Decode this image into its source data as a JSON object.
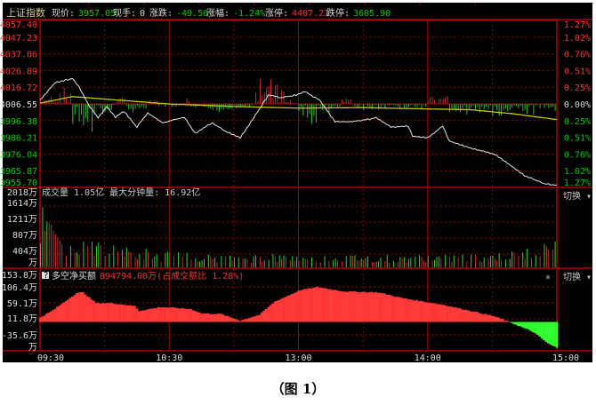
{
  "header": {
    "index_name": "上证指数",
    "price_label": "现价:",
    "price": "3957.05",
    "hand_label": "现手:",
    "hand": "0",
    "change_label": "涨跌:",
    "change": "-49.50",
    "pct_label": "涨幅:",
    "pct": "-1.24%",
    "limit_up_label": "涨停:",
    "limit_up": "4407.21",
    "limit_down_label": "跌停:",
    "limit_down": "3605.90"
  },
  "price_axis": {
    "left": [
      "4057.40",
      "4047.23",
      "4037.06",
      "4026.89",
      "4016.72",
      "4006.55",
      "3996.38",
      "3986.21",
      "3976.04",
      "3965.87",
      "3955.70"
    ],
    "right": [
      "1.27%",
      "1.02%",
      "0.76%",
      "0.51%",
      "0.25%",
      "0.00%",
      "0.25%",
      "0.51%",
      "0.76%",
      "1.02%",
      "1.27%"
    ]
  },
  "volume_panel": {
    "title": "成交量 1.05亿 最大分钟量: 16.92亿",
    "axis": [
      "2018万",
      "1614万",
      "1211万",
      "807万",
      "404万",
      "万"
    ],
    "switch_label": "切换 ▾"
  },
  "net_panel": {
    "help": "?",
    "title": "多空净买额",
    "value": "894794.00万(占成交额比 1.28%)",
    "axis": [
      "153.8万",
      "106.4万",
      "59.1万",
      "11.8万",
      "-35.6万",
      "万"
    ],
    "close": "×",
    "switch_label": "切换 ▾"
  },
  "time_axis": [
    "09:30",
    "10:30",
    "13:00",
    "14:00",
    "15:00"
  ],
  "caption": "（图 1）",
  "colors": {
    "up": "#ff3232",
    "down": "#00d000",
    "price_line": "#e6e6e6",
    "avg_line": "#c8c800",
    "grid": "#a00000",
    "bg": "#000000"
  },
  "chart_data": [
    {
      "type": "line",
      "title": "上证指数",
      "x_unit": "minutes since 09:30 (trading time)",
      "ylim": [
        3955.7,
        4057.4
      ],
      "prev_close": 4006.55,
      "series": [
        {
          "key": "price",
          "points": [
            [
              0,
              4008.7
            ],
            [
              7,
              4019.5
            ],
            [
              15,
              4022
            ],
            [
              18,
              4017
            ],
            [
              23,
              4005
            ],
            [
              27,
              3998
            ],
            [
              31,
              4005
            ],
            [
              35,
              3998.5
            ],
            [
              39,
              4002
            ],
            [
              45,
              3992.5
            ],
            [
              50,
              4001
            ],
            [
              57,
              3995
            ],
            [
              67,
              3998.5
            ],
            [
              72,
              3988.7
            ],
            [
              80,
              3995
            ],
            [
              86,
              3990
            ],
            [
              93,
              3986
            ],
            [
              100,
              3999.5
            ],
            [
              106,
              4012
            ],
            [
              112,
              4010.3
            ],
            [
              119,
              4012
            ],
            [
              123,
              4014
            ],
            [
              130,
              4008.7
            ],
            [
              137,
              3995.7
            ],
            [
              145,
              3995.7
            ],
            [
              156,
              3998
            ],
            [
              163,
              3992.5
            ],
            [
              171,
              3993
            ],
            [
              173,
              3987
            ],
            [
              180,
              3986
            ],
            [
              187,
              3993
            ],
            [
              190,
              3984
            ],
            [
              200,
              3979.5
            ],
            [
              211,
              3976
            ],
            [
              225,
              3963
            ],
            [
              234,
              3957.9
            ],
            [
              240,
              3957.05
            ]
          ]
        },
        {
          "key": "average",
          "points": [
            [
              0,
              4007
            ],
            [
              15,
              4011
            ],
            [
              30,
              4009.5
            ],
            [
              60,
              4006.5
            ],
            [
              90,
              4005
            ],
            [
              120,
              4004
            ],
            [
              150,
              4004.3
            ],
            [
              180,
              4003.5
            ],
            [
              200,
              4003
            ],
            [
              220,
              4000.5
            ],
            [
              240,
              3997
            ]
          ]
        }
      ],
      "strength_5min": [
        3,
        7,
        8,
        -12,
        -18,
        -6,
        -4,
        3,
        -5,
        -3,
        2,
        -2,
        -3,
        4,
        -2,
        -3,
        -4,
        -3,
        -2,
        -2,
        12,
        16,
        10,
        3,
        -8,
        -10,
        -4,
        -2,
        3,
        -2,
        -3,
        -4,
        -3,
        -2,
        -2,
        -3,
        5,
        6,
        -4,
        -6,
        -5,
        -4,
        -6,
        -5,
        -7,
        -6,
        -4,
        -4
      ],
      "strength_xlim_minutes": [
        0,
        240
      ]
    },
    {
      "type": "bar",
      "title": "成交量",
      "unit": "万",
      "ylim": [
        0,
        2018
      ],
      "first_minutes": [
        620,
        1550,
        950,
        1180,
        1150,
        1100,
        950,
        850,
        780,
        700
      ],
      "values_5min": [
        0,
        0,
        560,
        520,
        480,
        500,
        430,
        420,
        380,
        360,
        320,
        300,
        290,
        270,
        280,
        260,
        250,
        240,
        220,
        230,
        260,
        280,
        240,
        250,
        300,
        260,
        250,
        240,
        230,
        250,
        240,
        230,
        240,
        230,
        250,
        260,
        250,
        240,
        250,
        260,
        250,
        270,
        280,
        300,
        320,
        380,
        450,
        600
      ]
    },
    {
      "type": "area",
      "title": "多空净买额",
      "unit": "万",
      "ylim": [
        -78,
        153.8
      ],
      "points": [
        [
          0,
          13
        ],
        [
          6,
          35
        ],
        [
          17,
          87
        ],
        [
          20,
          89
        ],
        [
          26,
          57
        ],
        [
          33,
          57
        ],
        [
          44,
          48
        ],
        [
          46,
          33
        ],
        [
          56,
          45
        ],
        [
          70,
          39
        ],
        [
          75,
          26
        ],
        [
          84,
          24
        ],
        [
          93,
          4
        ],
        [
          102,
          22
        ],
        [
          109,
          61
        ],
        [
          121,
          96
        ],
        [
          129,
          105
        ],
        [
          141,
          92
        ],
        [
          157,
          89
        ],
        [
          169,
          71
        ],
        [
          187,
          52
        ],
        [
          201,
          32
        ],
        [
          211,
          17
        ],
        [
          218,
          0
        ],
        [
          229,
          -30
        ],
        [
          236,
          -65
        ],
        [
          240,
          -78
        ]
      ]
    }
  ]
}
